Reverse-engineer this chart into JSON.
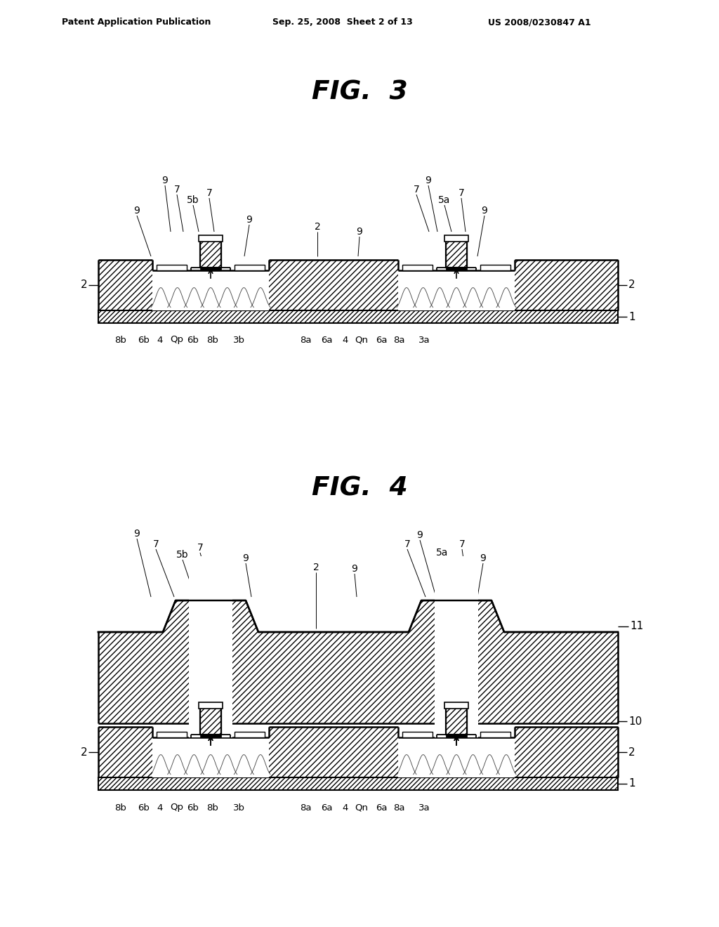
{
  "bg_color": "#ffffff",
  "header_left": "Patent Application Publication",
  "header_mid": "Sep. 25, 2008  Sheet 2 of 13",
  "header_right": "US 2008/0230847 A1",
  "fig3_title": "FIG.  3",
  "fig4_title": "FIG.  4",
  "bottom_labels": [
    "8b",
    "6b",
    "4",
    "Qp",
    "6b",
    "8b",
    "3b",
    "8a",
    "6a",
    "4",
    "Qn",
    "6a",
    "8a",
    "3a"
  ]
}
